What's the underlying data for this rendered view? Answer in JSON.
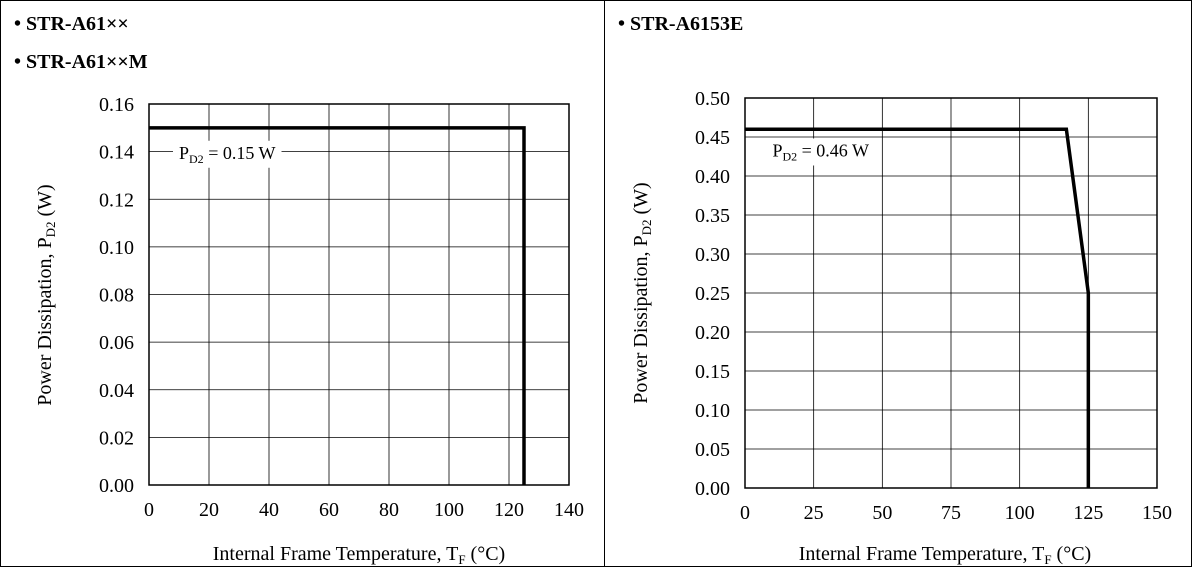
{
  "charts": {
    "left": {
      "titles": [
        "• STR-A61××",
        "• STR-A61××M"
      ],
      "chart_data": {
        "type": "line",
        "title": "",
        "xlabel": {
          "main": "Internal Frame Temperature, T",
          "sub": "F",
          "post": " (°C)"
        },
        "ylabel": {
          "main": "Power Dissipation, P",
          "sub": "D2",
          "post": " (W)"
        },
        "xlim": [
          0,
          140
        ],
        "ylim": [
          0,
          0.16
        ],
        "x_ticks": [
          0,
          20,
          40,
          60,
          80,
          100,
          120,
          140
        ],
        "x_tick_labels": [
          "0",
          "20",
          "40",
          "60",
          "80",
          "100",
          "120",
          "140"
        ],
        "y_ticks": [
          0,
          0.02,
          0.04,
          0.06,
          0.08,
          0.1,
          0.12,
          0.14,
          0.16
        ],
        "y_tick_labels": [
          "0.00",
          "0.02",
          "0.04",
          "0.06",
          "0.08",
          "0.10",
          "0.12",
          "0.14",
          "0.16"
        ],
        "grid": true,
        "series": [
          {
            "x": [
              0,
              125,
              125
            ],
            "y": [
              0.15,
              0.15,
              0
            ]
          }
        ],
        "annotation": {
          "pre": "P",
          "sub": "D2",
          "post": " =  0.15 W",
          "x": 10,
          "y": 0.137
        }
      }
    },
    "right": {
      "titles": [
        "• STR-A6153E"
      ],
      "chart_data": {
        "type": "line",
        "title": "",
        "xlabel": {
          "main": "Internal Frame Temperature, T",
          "sub": "F",
          "post": " (°C)"
        },
        "ylabel": {
          "main": "Power Dissipation, P",
          "sub": "D2",
          "post": " (W)"
        },
        "xlim": [
          0,
          150
        ],
        "ylim": [
          0,
          0.5
        ],
        "x_ticks": [
          0,
          25,
          50,
          75,
          100,
          125,
          150
        ],
        "x_tick_labels": [
          "0",
          "25",
          "50",
          "75",
          "100",
          "125",
          "150"
        ],
        "y_ticks": [
          0,
          0.05,
          0.1,
          0.15,
          0.2,
          0.25,
          0.3,
          0.35,
          0.4,
          0.45,
          0.5
        ],
        "y_tick_labels": [
          "0.00",
          "0.05",
          "0.10",
          "0.15",
          "0.20",
          "0.25",
          "0.30",
          "0.35",
          "0.40",
          "0.45",
          "0.50"
        ],
        "grid": true,
        "series": [
          {
            "x": [
              0,
              117,
              125,
              125
            ],
            "y": [
              0.46,
              0.46,
              0.25,
              0
            ]
          }
        ],
        "annotation": {
          "pre": "P",
          "sub": "D2",
          "post": " = 0.46 W",
          "x": 10,
          "y": 0.425
        }
      }
    }
  }
}
